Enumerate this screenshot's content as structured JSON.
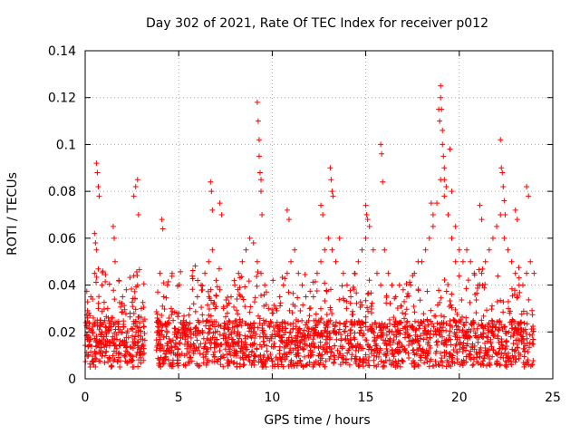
{
  "chart_data": {
    "type": "scatter",
    "title": "Day 302 of 2021, Rate Of TEC Index for receiver p012",
    "xlabel": "GPS time / hours",
    "ylabel": "ROTI / TECUs",
    "xlim": [
      0,
      24
    ],
    "ylim": [
      0,
      0.14
    ],
    "x_ticks": [
      0,
      5,
      10,
      15,
      20,
      25
    ],
    "x_tick_labels": [
      "0",
      "5",
      "10",
      "15",
      "20",
      "25"
    ],
    "y_ticks": [
      0,
      0.02,
      0.04,
      0.06,
      0.08,
      0.1,
      0.12,
      0.14
    ],
    "y_tick_labels": [
      "0",
      "0.02",
      "0.04",
      "0.06",
      "0.08",
      "0.1",
      "0.12",
      "0.14"
    ],
    "grid": true,
    "marker": "plus",
    "color": "#ff0000",
    "series": [
      {
        "x": [
          0.1,
          0.2,
          0.3,
          0.4,
          0.5,
          0.6,
          0.7,
          0.8,
          0.9,
          1.0,
          1.2,
          1.4,
          1.6,
          1.8,
          2.0,
          2.2,
          2.4,
          2.6,
          2.8,
          3.0,
          0.6,
          0.65,
          0.7,
          0.75,
          0.5,
          0.55,
          1.5,
          1.55,
          2.6,
          2.7,
          2.8,
          2.85,
          3.9,
          4.0,
          4.2,
          4.4,
          4.6,
          4.8,
          5.0,
          5.2,
          5.4,
          5.6,
          5.8,
          6.0,
          6.2,
          6.4,
          6.6,
          6.8,
          7.0,
          7.2,
          7.4,
          7.6,
          7.8,
          4.1,
          4.15,
          6.7,
          6.75,
          6.8,
          7.2,
          7.3,
          8.0,
          8.2,
          8.4,
          8.6,
          8.8,
          9.0,
          9.2,
          9.4,
          9.6,
          9.8,
          10.0,
          10.2,
          10.4,
          10.6,
          10.8,
          11.0,
          11.2,
          11.4,
          11.6,
          11.8,
          9.2,
          9.25,
          9.3,
          9.3,
          9.35,
          9.4,
          9.4,
          9.45,
          10.8,
          10.9,
          12.0,
          12.2,
          12.4,
          12.6,
          12.8,
          13.0,
          13.2,
          13.4,
          13.6,
          13.8,
          14.0,
          14.2,
          14.4,
          14.6,
          14.8,
          15.0,
          15.2,
          15.4,
          15.6,
          15.8,
          12.6,
          12.7,
          13.1,
          13.15,
          13.2,
          13.25,
          15.0,
          15.05,
          15.1,
          15.8,
          15.85,
          15.9,
          16.0,
          16.2,
          16.4,
          16.6,
          16.8,
          17.0,
          17.2,
          17.4,
          17.6,
          17.8,
          18.0,
          18.2,
          18.4,
          18.6,
          18.8,
          19.0,
          19.2,
          19.4,
          19.6,
          19.8,
          18.5,
          18.6,
          18.9,
          18.95,
          19.0,
          19.0,
          19.05,
          19.1,
          19.1,
          19.15,
          19.2,
          19.2,
          19.3,
          19.5,
          19.6,
          19.8,
          20.0,
          20.2,
          20.4,
          20.6,
          20.8,
          21.0,
          21.2,
          21.4,
          21.6,
          21.8,
          22.0,
          22.2,
          22.4,
          22.6,
          22.8,
          23.0,
          23.2,
          23.4,
          23.6,
          23.8,
          24.0,
          21.1,
          21.2,
          22.2,
          22.25,
          22.3,
          22.35,
          22.4,
          22.45,
          23.0,
          23.1,
          23.6,
          23.7
        ],
        "y": [
          0.022,
          0.028,
          0.035,
          0.02,
          0.045,
          0.055,
          0.03,
          0.025,
          0.04,
          0.018,
          0.03,
          0.026,
          0.05,
          0.042,
          0.035,
          0.038,
          0.028,
          0.044,
          0.04,
          0.03,
          0.092,
          0.088,
          0.082,
          0.078,
          0.062,
          0.058,
          0.065,
          0.06,
          0.078,
          0.082,
          0.085,
          0.07,
          0.025,
          0.045,
          0.035,
          0.04,
          0.03,
          0.02,
          0.028,
          0.022,
          0.024,
          0.03,
          0.032,
          0.035,
          0.04,
          0.045,
          0.05,
          0.055,
          0.042,
          0.038,
          0.03,
          0.028,
          0.035,
          0.068,
          0.064,
          0.084,
          0.08,
          0.072,
          0.075,
          0.07,
          0.04,
          0.045,
          0.05,
          0.055,
          0.06,
          0.058,
          0.05,
          0.045,
          0.04,
          0.03,
          0.028,
          0.03,
          0.035,
          0.04,
          0.045,
          0.05,
          0.055,
          0.045,
          0.04,
          0.035,
          0.118,
          0.11,
          0.102,
          0.095,
          0.088,
          0.085,
          0.08,
          0.07,
          0.072,
          0.068,
          0.03,
          0.035,
          0.045,
          0.05,
          0.055,
          0.06,
          0.055,
          0.05,
          0.06,
          0.045,
          0.04,
          0.035,
          0.045,
          0.05,
          0.055,
          0.06,
          0.065,
          0.055,
          0.045,
          0.04,
          0.074,
          0.07,
          0.09,
          0.085,
          0.08,
          0.078,
          0.074,
          0.07,
          0.068,
          0.1,
          0.096,
          0.084,
          0.055,
          0.045,
          0.04,
          0.035,
          0.04,
          0.038,
          0.035,
          0.04,
          0.045,
          0.05,
          0.05,
          0.055,
          0.06,
          0.065,
          0.075,
          0.085,
          0.078,
          0.07,
          0.06,
          0.05,
          0.075,
          0.07,
          0.115,
          0.11,
          0.125,
          0.12,
          0.115,
          0.106,
          0.1,
          0.095,
          0.09,
          0.085,
          0.082,
          0.098,
          0.08,
          0.065,
          0.055,
          0.05,
          0.055,
          0.05,
          0.045,
          0.04,
          0.045,
          0.05,
          0.055,
          0.06,
          0.065,
          0.07,
          0.06,
          0.055,
          0.05,
          0.045,
          0.04,
          0.04,
          0.045,
          0.05,
          0.045,
          0.074,
          0.068,
          0.102,
          0.09,
          0.088,
          0.082,
          0.076,
          0.07,
          0.072,
          0.068,
          0.082,
          0.078
        ]
      }
    ]
  }
}
